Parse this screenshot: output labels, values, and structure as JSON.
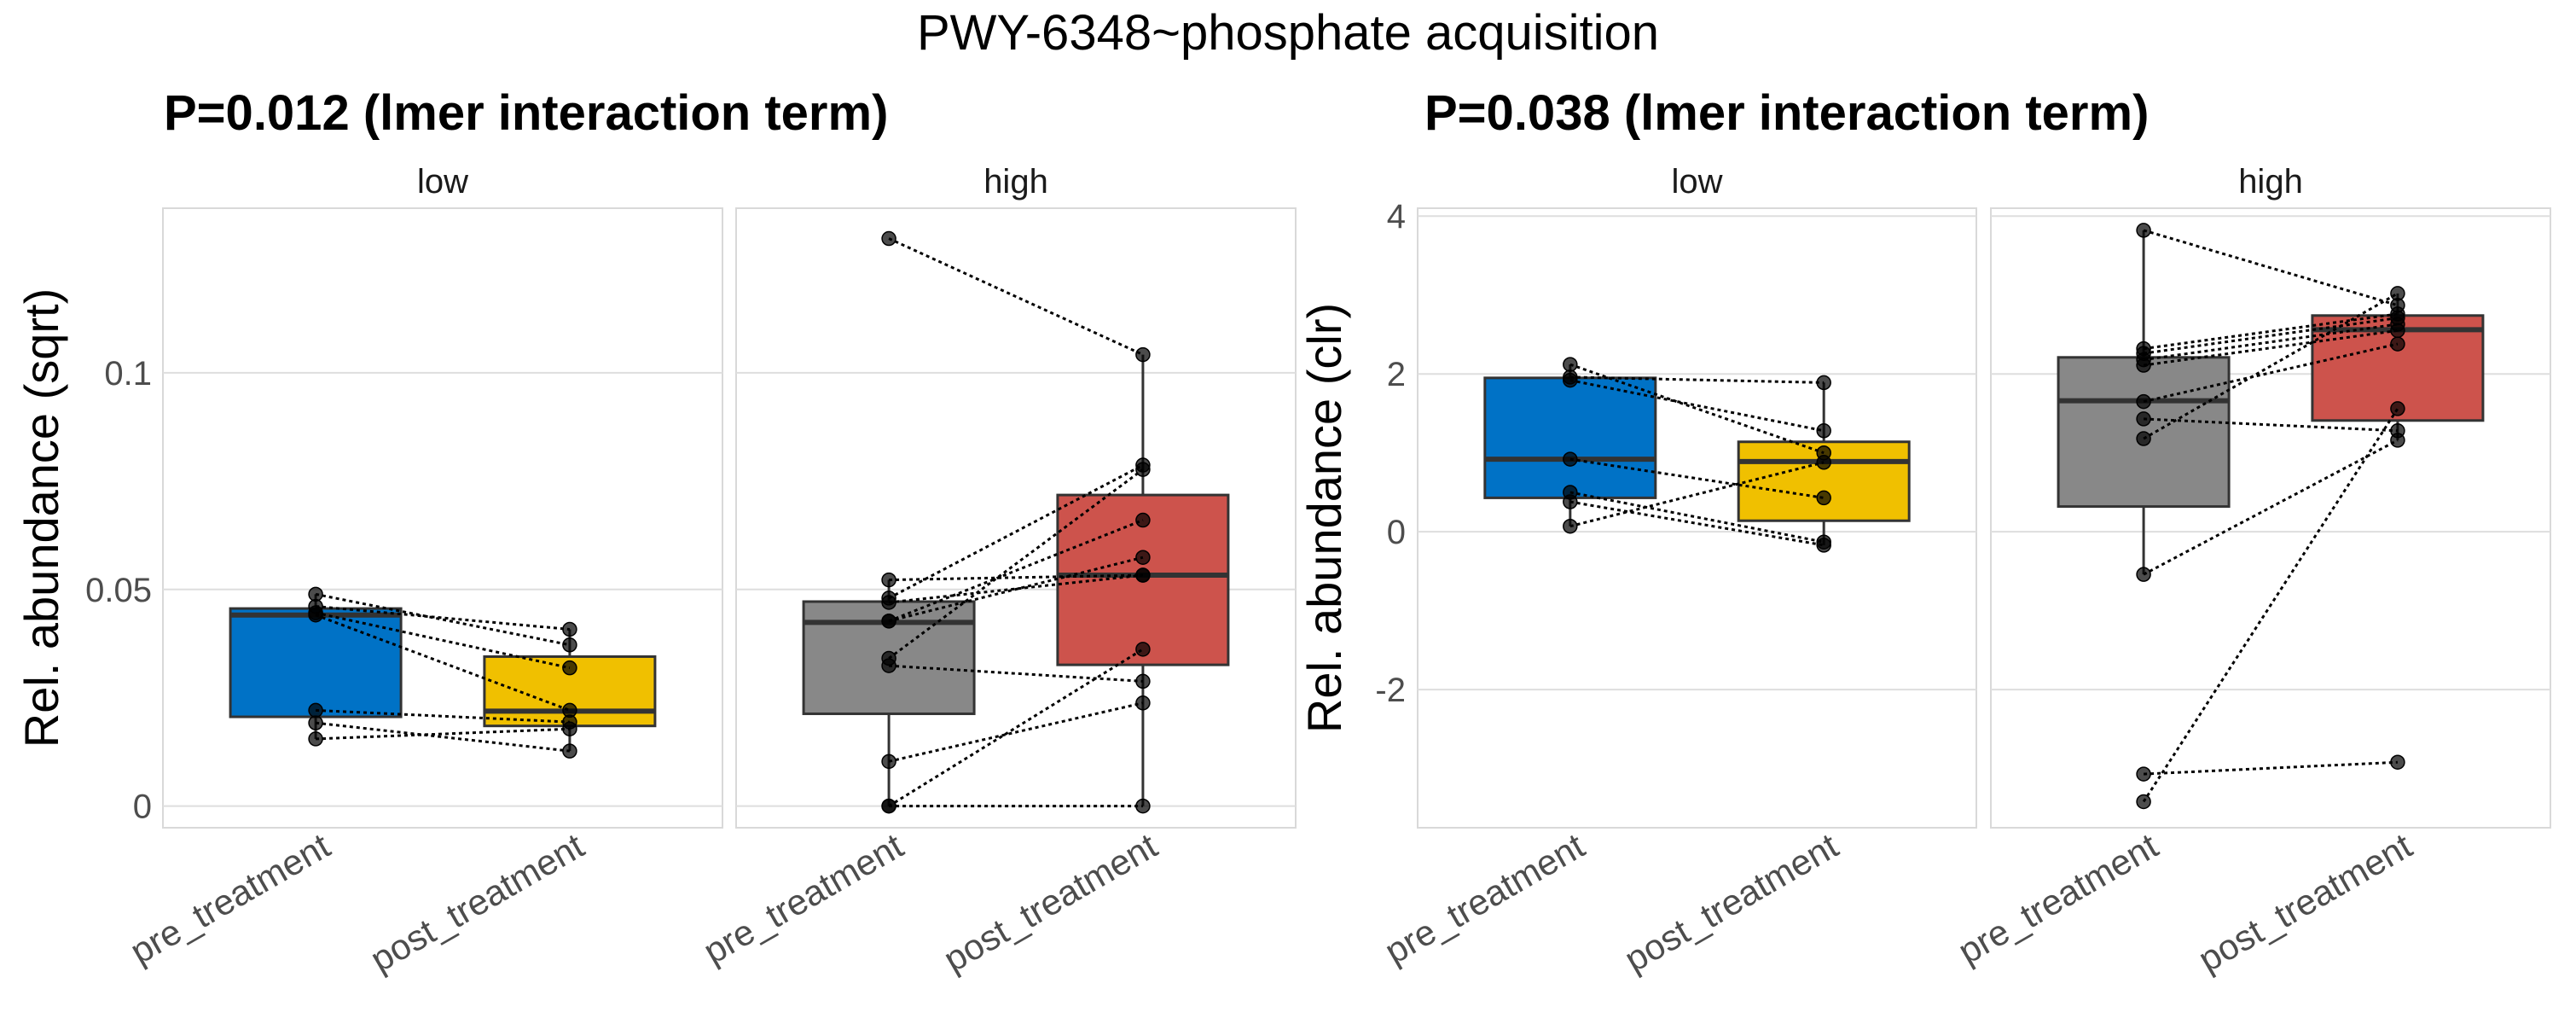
{
  "chart_data": {
    "type": "boxplot",
    "title": "PWY-6348~phosphate acquisition",
    "colors": {
      "low_pre": "#0072C6",
      "low_post": "#F0C000",
      "high_pre": "#888888",
      "high_post": "#CD534C"
    },
    "plots": [
      {
        "subtitle": "P=0.012 (lmer interaction term)",
        "ylabel": "Rel. abundance (sqrt)",
        "ylim": [
          -0.005,
          0.138
        ],
        "yticks": [
          0,
          0.05,
          0.1
        ],
        "ytick_labels": [
          "0",
          "0.05",
          "0.1"
        ],
        "facets": [
          {
            "label": "low",
            "categories": [
              "pre_treatment",
              "post_treatment"
            ],
            "boxes": [
              {
                "q1": 0.0206,
                "median": 0.0441,
                "q3": 0.0456,
                "whisker_low": 0.0155,
                "whisker_high": 0.0489
              },
              {
                "q1": 0.0185,
                "median": 0.0219,
                "q3": 0.0345,
                "whisker_low": 0.0127,
                "whisker_high": 0.0408
              }
            ],
            "pre": [
              0.0489,
              0.0461,
              0.0446,
              0.0441,
              0.0221,
              0.0192,
              0.0155
            ],
            "post": [
              0.0372,
              0.0408,
              0.0319,
              0.0221,
              0.0194,
              0.0127,
              0.0178
            ]
          },
          {
            "label": "high",
            "categories": [
              "pre_treatment",
              "post_treatment"
            ],
            "boxes": [
              {
                "q1": 0.0213,
                "median": 0.0424,
                "q3": 0.0472,
                "whisker_low": 0,
                "whisker_high": 0.0522
              },
              {
                "q1": 0.0326,
                "median": 0.0533,
                "q3": 0.0718,
                "whisker_low": 0,
                "whisker_high": 0.1042
              }
            ],
            "pre": [
              0.131,
              0.0522,
              0.048,
              0.047,
              0.0427,
              0.0427,
              0.0341,
              0.0324,
              0.0103,
              0,
              0
            ],
            "post": [
              0.1042,
              0.0533,
              0.0787,
              0.0533,
              0.0574,
              0.066,
              0.0777,
              0.0288,
              0.0238,
              0.0362,
              0
            ]
          }
        ]
      },
      {
        "subtitle": "P=0.038 (lmer interaction term)",
        "ylabel": "Rel. abundance (clr)",
        "ylim": [
          -3.75,
          4.1
        ],
        "yticks": [
          -2,
          0,
          2,
          4
        ],
        "ytick_labels": [
          "-2",
          "0",
          "2",
          "4"
        ],
        "facets": [
          {
            "label": "low",
            "categories": [
              "pre_treatment",
              "post_treatment"
            ],
            "boxes": [
              {
                "q1": 0.43,
                "median": 0.92,
                "q3": 1.95,
                "whisker_low": 0.07,
                "whisker_high": 2.12
              },
              {
                "q1": 0.14,
                "median": 0.89,
                "q3": 1.14,
                "whisker_low": -0.17,
                "whisker_high": 1.89
              }
            ],
            "pre": [
              2.12,
              1.96,
              1.92,
              0.92,
              0.5,
              0.38,
              0.07
            ],
            "post": [
              1.0,
              1.89,
              1.28,
              0.43,
              -0.13,
              -0.17,
              0.88
            ]
          },
          {
            "label": "high",
            "categories": [
              "pre_treatment",
              "post_treatment"
            ],
            "boxes": [
              {
                "q1": 0.32,
                "median": 1.66,
                "q3": 2.21,
                "whisker_low": -0.54,
                "whisker_high": 3.82
              },
              {
                "q1": 1.41,
                "median": 2.56,
                "q3": 2.74,
                "whisker_low": 1.16,
                "whisker_high": 3.02
              }
            ],
            "pre": [
              3.82,
              2.32,
              2.26,
              2.18,
              2.11,
              1.65,
              1.43,
              1.18,
              -0.54,
              -3.07,
              -3.42
            ],
            "post": [
              2.87,
              2.76,
              2.71,
              2.63,
              2.55,
              2.38,
              1.28,
              3.02,
              1.16,
              -2.92,
              1.56
            ]
          }
        ]
      }
    ]
  }
}
